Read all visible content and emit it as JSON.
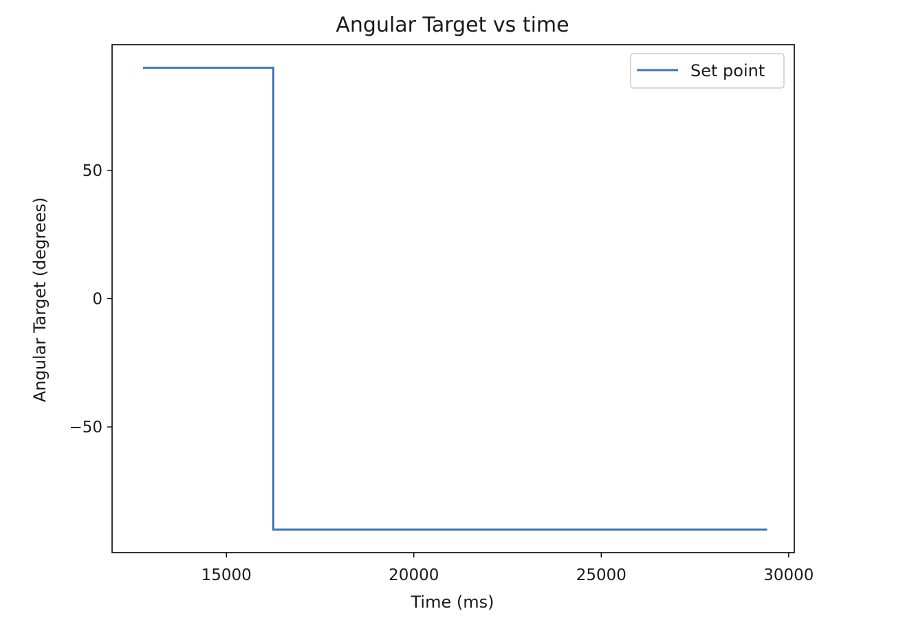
{
  "chart_data": {
    "type": "line",
    "title": "Angular Target vs time",
    "xlabel": "Time (ms)",
    "ylabel": "Angular Target (degrees)",
    "xlim": [
      11950,
      30150
    ],
    "ylim": [
      -99,
      99
    ],
    "xticks": [
      {
        "value": 15000,
        "label": "15000"
      },
      {
        "value": 20000,
        "label": "20000"
      },
      {
        "value": 25000,
        "label": "25000"
      },
      {
        "value": 30000,
        "label": "30000"
      }
    ],
    "yticks": [
      {
        "value": 50,
        "label": "50"
      },
      {
        "value": 0,
        "label": "0"
      },
      {
        "value": -50,
        "label": "−50"
      }
    ],
    "grid": false,
    "legend_position": "top-right",
    "series": [
      {
        "name": "Set point",
        "color": "#3a75b8",
        "points": [
          {
            "x": 12800,
            "y": 90
          },
          {
            "x": 16250,
            "y": 90
          },
          {
            "x": 16250,
            "y": -90
          },
          {
            "x": 29400,
            "y": -90
          }
        ]
      }
    ]
  }
}
